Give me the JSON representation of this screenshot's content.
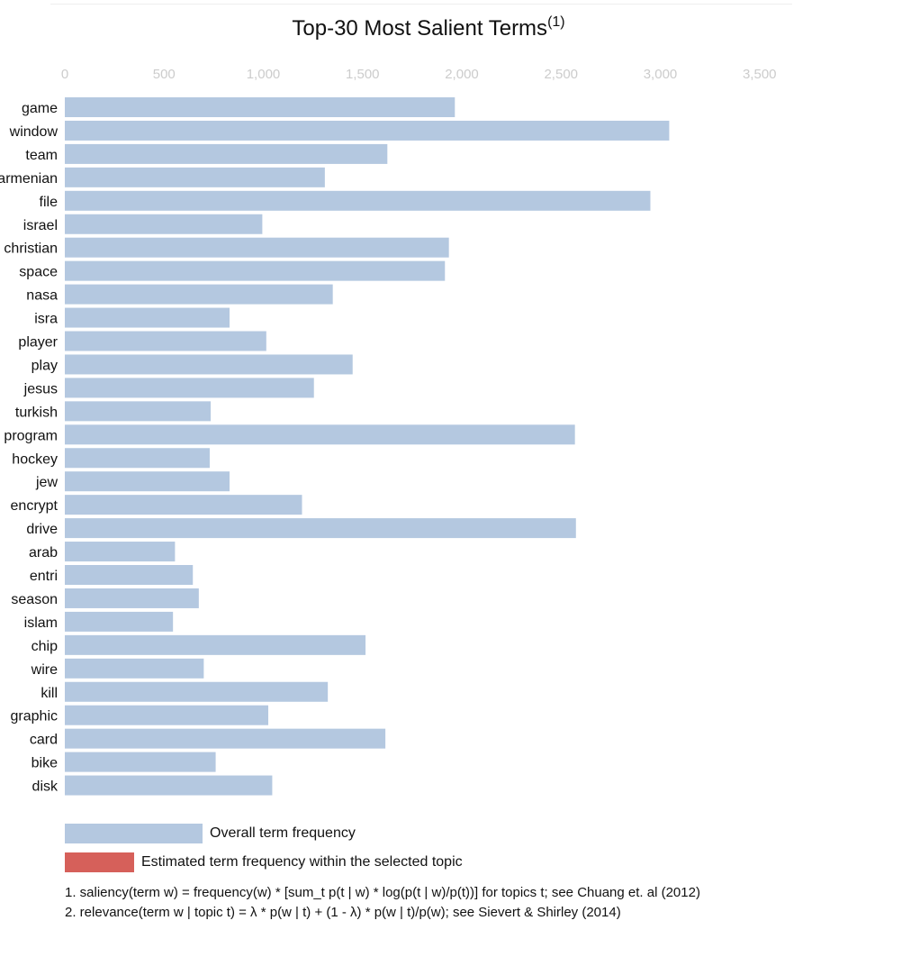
{
  "title": "Top-30 Most Salient Terms",
  "title_superscript": "(1)",
  "colors": {
    "overall": "#b4c8e0",
    "topic": "#d6605a",
    "tick": "#cccccc"
  },
  "legend": {
    "overall_label": "Overall term frequency",
    "topic_label": "Estimated term frequency within the selected topic"
  },
  "notes": [
    "1. saliency(term w) = frequency(w) * [sum_t p(t | w) * log(p(t | w)/p(t))] for topics t; see Chuang et. al (2012)",
    "2. relevance(term w | topic t) = λ * p(w | t) + (1 - λ) * p(w | t)/p(w); see Sievert & Shirley (2014)"
  ],
  "chart_data": {
    "type": "bar",
    "orientation": "horizontal",
    "xlim": [
      0,
      3500
    ],
    "xticks": [
      "0",
      "500",
      "1,000",
      "1,500",
      "2,000",
      "2,500",
      "3,000",
      "3,500"
    ],
    "grid": false,
    "categories": [
      "game",
      "window",
      "team",
      "armenian",
      "file",
      "israel",
      "christian",
      "space",
      "nasa",
      "isra",
      "player",
      "play",
      "jesus",
      "turkish",
      "program",
      "hockey",
      "jew",
      "encrypt",
      "drive",
      "arab",
      "entri",
      "season",
      "islam",
      "chip",
      "wire",
      "kill",
      "graphic",
      "card",
      "bike",
      "disk"
    ],
    "series": [
      {
        "name": "Overall term frequency",
        "values": [
          1965,
          3045,
          1625,
          1310,
          2950,
          995,
          1935,
          1915,
          1350,
          830,
          1015,
          1450,
          1255,
          735,
          2570,
          730,
          830,
          1195,
          2575,
          555,
          645,
          675,
          545,
          1515,
          700,
          1325,
          1025,
          1615,
          760,
          1045
        ]
      }
    ]
  }
}
